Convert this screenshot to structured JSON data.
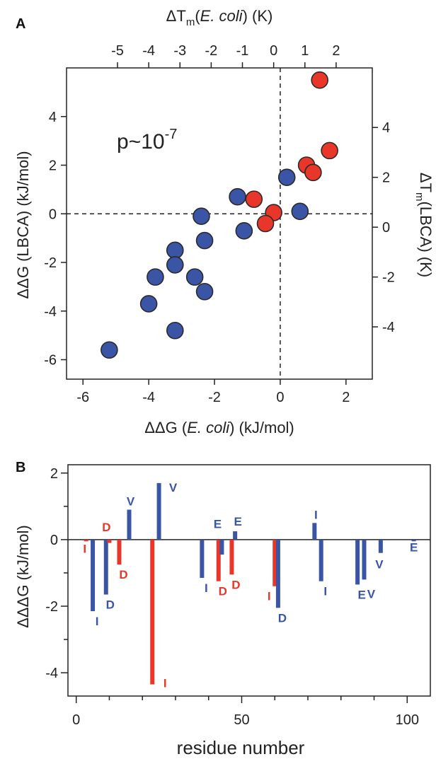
{
  "panels": [
    {
      "letter": "A",
      "annotation": "p~10",
      "annotation_exp": "-7",
      "xlabel_bottom_prefix": "ΔΔG (",
      "xlabel_bottom_italic": "E. coli",
      "xlabel_bottom_suffix": ") (kJ/mol)",
      "xlabel_top_prefix": "ΔT",
      "xlabel_top_sub": "m",
      "xlabel_top_italic": "E. coli",
      "xlabel_top_suffix": ") (K)",
      "ylabel_left": "ΔΔG (LBCA) (kJ/mol)",
      "ylabel_right_prefix": "ΔT",
      "ylabel_right_sub": "m",
      "ylabel_right_suffix": "(LBCA) (K)"
    },
    {
      "letter": "B",
      "xlabel": "residue number",
      "ylabel": "ΔΔΔG (kJ/mol)"
    }
  ],
  "chart_data": [
    {
      "type": "scatter",
      "xlim": [
        -6.5,
        2.8
      ],
      "ylim": [
        -6.8,
        6.0
      ],
      "x_ticks": [
        -6,
        -4,
        -2,
        0,
        2
      ],
      "y_ticks": [
        -6,
        -4,
        -2,
        0,
        2,
        4
      ],
      "top_x_ticks": [
        -5,
        -4,
        -3,
        -2,
        -1,
        0,
        1,
        2
      ],
      "top_x_positions": [
        -4.95,
        -4.0,
        -3.05,
        -2.1,
        -1.15,
        -0.2,
        0.75,
        1.7
      ],
      "right_y_ticks": [
        -4,
        -2,
        0,
        2,
        4
      ],
      "right_y_positions": [
        -4.65,
        -2.6,
        -0.55,
        1.5,
        3.55
      ],
      "reference_lines": {
        "x": 0,
        "y": 0
      },
      "colors": {
        "blue": "#3a55a5",
        "red": "#e8372a"
      },
      "series": [
        {
          "color": "blue",
          "x": [
            -5.2,
            -4.0,
            -3.8,
            -3.2,
            -3.2,
            -3.2,
            -2.6,
            -2.3,
            -2.3,
            -2.4,
            -1.3,
            -1.1,
            0.2,
            0.6
          ],
          "y": [
            -5.6,
            -3.7,
            -2.6,
            -1.5,
            -2.1,
            -4.8,
            -2.6,
            -3.2,
            -1.1,
            -0.1,
            0.7,
            -0.7,
            1.5,
            0.1
          ]
        },
        {
          "color": "red",
          "x": [
            1.2,
            1.5,
            0.8,
            1.0,
            -0.8,
            -0.2,
            -0.45
          ],
          "y": [
            5.5,
            2.6,
            2.0,
            1.7,
            0.6,
            0.05,
            -0.4
          ]
        }
      ]
    },
    {
      "type": "bar",
      "xlim": [
        -2.5,
        107.0
      ],
      "ylim": [
        -4.7,
        2.25
      ],
      "x_ticks": [
        0,
        50,
        100
      ],
      "y_ticks": [
        -4,
        -2,
        0,
        2
      ],
      "colors": {
        "blue": "#3a55a5",
        "red": "#e8372a"
      },
      "bars": [
        {
          "x": 3,
          "value": -0.05,
          "color": "red",
          "label": "I"
        },
        {
          "x": 5,
          "value": -2.15,
          "color": "blue",
          "label": "I"
        },
        {
          "x": 9,
          "value": -1.65,
          "color": "blue",
          "label": "D"
        },
        {
          "x": 10,
          "value": -0.1,
          "color": "red",
          "label": "D"
        },
        {
          "x": 13,
          "value": -0.75,
          "color": "red",
          "label": "D"
        },
        {
          "x": 16,
          "value": 0.9,
          "color": "blue",
          "label": "V"
        },
        {
          "x": 23,
          "value": -4.35,
          "color": "red",
          "label": "I"
        },
        {
          "x": 25,
          "value": 1.7,
          "color": "blue",
          "label": "V"
        },
        {
          "x": 38,
          "value": -1.15,
          "color": "blue",
          "label": "I"
        },
        {
          "x": 43,
          "value": -1.25,
          "color": "red",
          "label": "D"
        },
        {
          "x": 44,
          "value": -0.45,
          "color": "blue",
          "label": "E"
        },
        {
          "x": 47,
          "value": -1.05,
          "color": "red",
          "label": "D"
        },
        {
          "x": 48,
          "value": 0.25,
          "color": "blue",
          "label": "E"
        },
        {
          "x": 60,
          "value": -1.4,
          "color": "red",
          "label": "I"
        },
        {
          "x": 61,
          "value": -2.05,
          "color": "blue",
          "label": "D"
        },
        {
          "x": 72,
          "value": 0.5,
          "color": "blue",
          "label": "I"
        },
        {
          "x": 74,
          "value": -1.25,
          "color": "blue",
          "label": "I"
        },
        {
          "x": 85,
          "value": -1.35,
          "color": "blue",
          "label": "E"
        },
        {
          "x": 87,
          "value": -1.2,
          "color": "blue",
          "label": "V"
        },
        {
          "x": 92,
          "value": -0.4,
          "color": "blue",
          "label": "V"
        },
        {
          "x": 102,
          "value": -0.05,
          "color": "blue",
          "label": "E"
        }
      ]
    }
  ]
}
